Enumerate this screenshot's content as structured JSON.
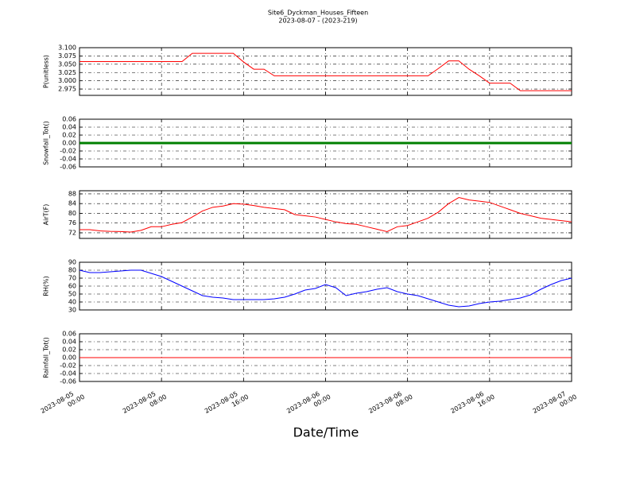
{
  "title": "Site6_Dyckman_Houses_Fifteen",
  "subtitle": "2023-08-07 - (2023-219)",
  "x_label": "Date/Time",
  "x": [
    "2023-08-05 00:00",
    "2023-08-05 01:00",
    "2023-08-05 02:00",
    "2023-08-05 03:00",
    "2023-08-05 04:00",
    "2023-08-05 05:00",
    "2023-08-05 06:00",
    "2023-08-05 07:00",
    "2023-08-05 08:00",
    "2023-08-05 09:00",
    "2023-08-05 10:00",
    "2023-08-05 11:00",
    "2023-08-05 12:00",
    "2023-08-05 13:00",
    "2023-08-05 14:00",
    "2023-08-05 15:00",
    "2023-08-05 16:00",
    "2023-08-05 17:00",
    "2023-08-05 18:00",
    "2023-08-05 19:00",
    "2023-08-05 20:00",
    "2023-08-05 21:00",
    "2023-08-05 22:00",
    "2023-08-05 23:00",
    "2023-08-06 00:00",
    "2023-08-06 01:00",
    "2023-08-06 02:00",
    "2023-08-06 03:00",
    "2023-08-06 04:00",
    "2023-08-06 05:00",
    "2023-08-06 06:00",
    "2023-08-06 07:00",
    "2023-08-06 08:00",
    "2023-08-06 09:00",
    "2023-08-06 10:00",
    "2023-08-06 11:00",
    "2023-08-06 12:00",
    "2023-08-06 13:00",
    "2023-08-06 14:00",
    "2023-08-06 15:00",
    "2023-08-06 16:00",
    "2023-08-06 17:00",
    "2023-08-06 18:00",
    "2023-08-06 19:00",
    "2023-08-06 20:00",
    "2023-08-06 21:00",
    "2023-08-06 22:00",
    "2023-08-06 23:00",
    "2023-08-07 00:00"
  ],
  "xlim": [
    "2023-08-05 00:00",
    "2023-08-07 00:00"
  ],
  "xticks": [
    "2023-08-05 00:00",
    "2023-08-05 08:00",
    "2023-08-05 16:00",
    "2023-08-06 00:00",
    "2023-08-06 08:00",
    "2023-08-06 16:00",
    "2023-08-07 00:00"
  ],
  "grid": true,
  "chart_data": [
    {
      "type": "line",
      "y_label": "P(unitless)",
      "color": "#ff0000",
      "values": [
        3.058,
        3.058,
        3.058,
        3.058,
        3.058,
        3.058,
        3.058,
        3.058,
        3.058,
        3.058,
        3.058,
        3.083,
        3.083,
        3.083,
        3.083,
        3.083,
        3.057,
        3.035,
        3.035,
        3.015,
        3.015,
        3.015,
        3.015,
        3.015,
        3.015,
        3.015,
        3.015,
        3.015,
        3.015,
        3.015,
        3.015,
        3.015,
        3.015,
        3.015,
        3.015,
        3.037,
        3.06,
        3.06,
        3.035,
        3.015,
        2.993,
        2.993,
        2.993,
        2.97,
        2.97,
        2.97,
        2.97,
        2.97,
        2.97
      ],
      "ylim": [
        2.956,
        3.1
      ],
      "yticks": [
        {
          "value": 2.975,
          "label": "2.975"
        },
        {
          "value": 3.0,
          "label": "3.000"
        },
        {
          "value": 3.025,
          "label": "3.025"
        },
        {
          "value": 3.05,
          "label": "3.050"
        },
        {
          "value": 3.075,
          "label": "3.075"
        },
        {
          "value": 3.1,
          "label": "3.100"
        }
      ]
    },
    {
      "type": "line",
      "y_label": "Snowfall_Tot()",
      "color": "#008000",
      "values": [
        0,
        0,
        0,
        0,
        0,
        0,
        0,
        0,
        0,
        0,
        0,
        0,
        0,
        0,
        0,
        0,
        0,
        0,
        0,
        0,
        0,
        0,
        0,
        0,
        0,
        0,
        0,
        0,
        0,
        0,
        0,
        0,
        0,
        0,
        0,
        0,
        0,
        0,
        0,
        0,
        0,
        0,
        0,
        0,
        0,
        0,
        0,
        0,
        0
      ],
      "ylim": [
        -0.06,
        0.06
      ],
      "yticks": [
        -0.06,
        -0.04,
        -0.02,
        {
          "value": 0,
          "label": "0.00"
        },
        0.02,
        0.04,
        0.06
      ]
    },
    {
      "type": "line",
      "y_label": "AirT(F)",
      "color": "#ff0000",
      "values": [
        73.3,
        73.3,
        72.8,
        72.6,
        72.5,
        72.3,
        73,
        74.5,
        74.5,
        75.5,
        76.2,
        78.5,
        81,
        82.5,
        83,
        84,
        83.8,
        83.2,
        82.5,
        82,
        81.5,
        79.5,
        79,
        78.5,
        77.5,
        76.5,
        75.8,
        75.5,
        74.5,
        73.5,
        72.5,
        74.5,
        75,
        76.5,
        78,
        80.5,
        84,
        86.5,
        85.5,
        85,
        84.5,
        83,
        81.5,
        80,
        79,
        78,
        77.5,
        77,
        76.5
      ],
      "ylim": [
        69.7,
        89.3
      ],
      "yticks": [
        72,
        76,
        80,
        84,
        88
      ]
    },
    {
      "type": "line",
      "y_label": "RH(%)",
      "color": "#0000ff",
      "values": [
        80,
        77,
        77,
        78,
        79,
        80,
        80,
        76,
        72,
        66,
        60,
        54,
        48,
        46,
        45,
        43,
        43,
        43,
        43,
        44,
        46,
        50,
        55,
        57,
        62,
        58,
        48,
        51,
        53,
        56,
        58,
        53,
        50,
        48,
        44,
        40,
        36,
        34,
        35,
        38,
        40,
        41,
        43,
        45,
        49,
        56,
        62,
        67,
        70
      ],
      "ylim": [
        30,
        90
      ],
      "yticks": [
        30,
        40,
        50,
        60,
        70,
        80,
        90
      ]
    },
    {
      "type": "line",
      "y_label": "Rainfall_Tot()",
      "color": "#ff0000",
      "values": [
        0,
        0,
        0,
        0,
        0,
        0,
        0,
        0,
        0,
        0,
        0,
        0,
        0,
        0,
        0,
        0,
        0,
        0,
        0,
        0,
        0,
        0,
        0,
        0,
        0,
        0,
        0,
        0,
        0,
        0,
        0,
        0,
        0,
        0,
        0,
        0,
        0,
        0,
        0,
        0,
        0,
        0,
        0,
        0,
        0,
        0,
        0,
        0,
        0
      ],
      "ylim": [
        -0.06,
        0.06
      ],
      "yticks": [
        -0.06,
        -0.04,
        -0.02,
        {
          "value": 0,
          "label": "0.00"
        },
        0.02,
        0.04,
        0.06
      ]
    }
  ]
}
